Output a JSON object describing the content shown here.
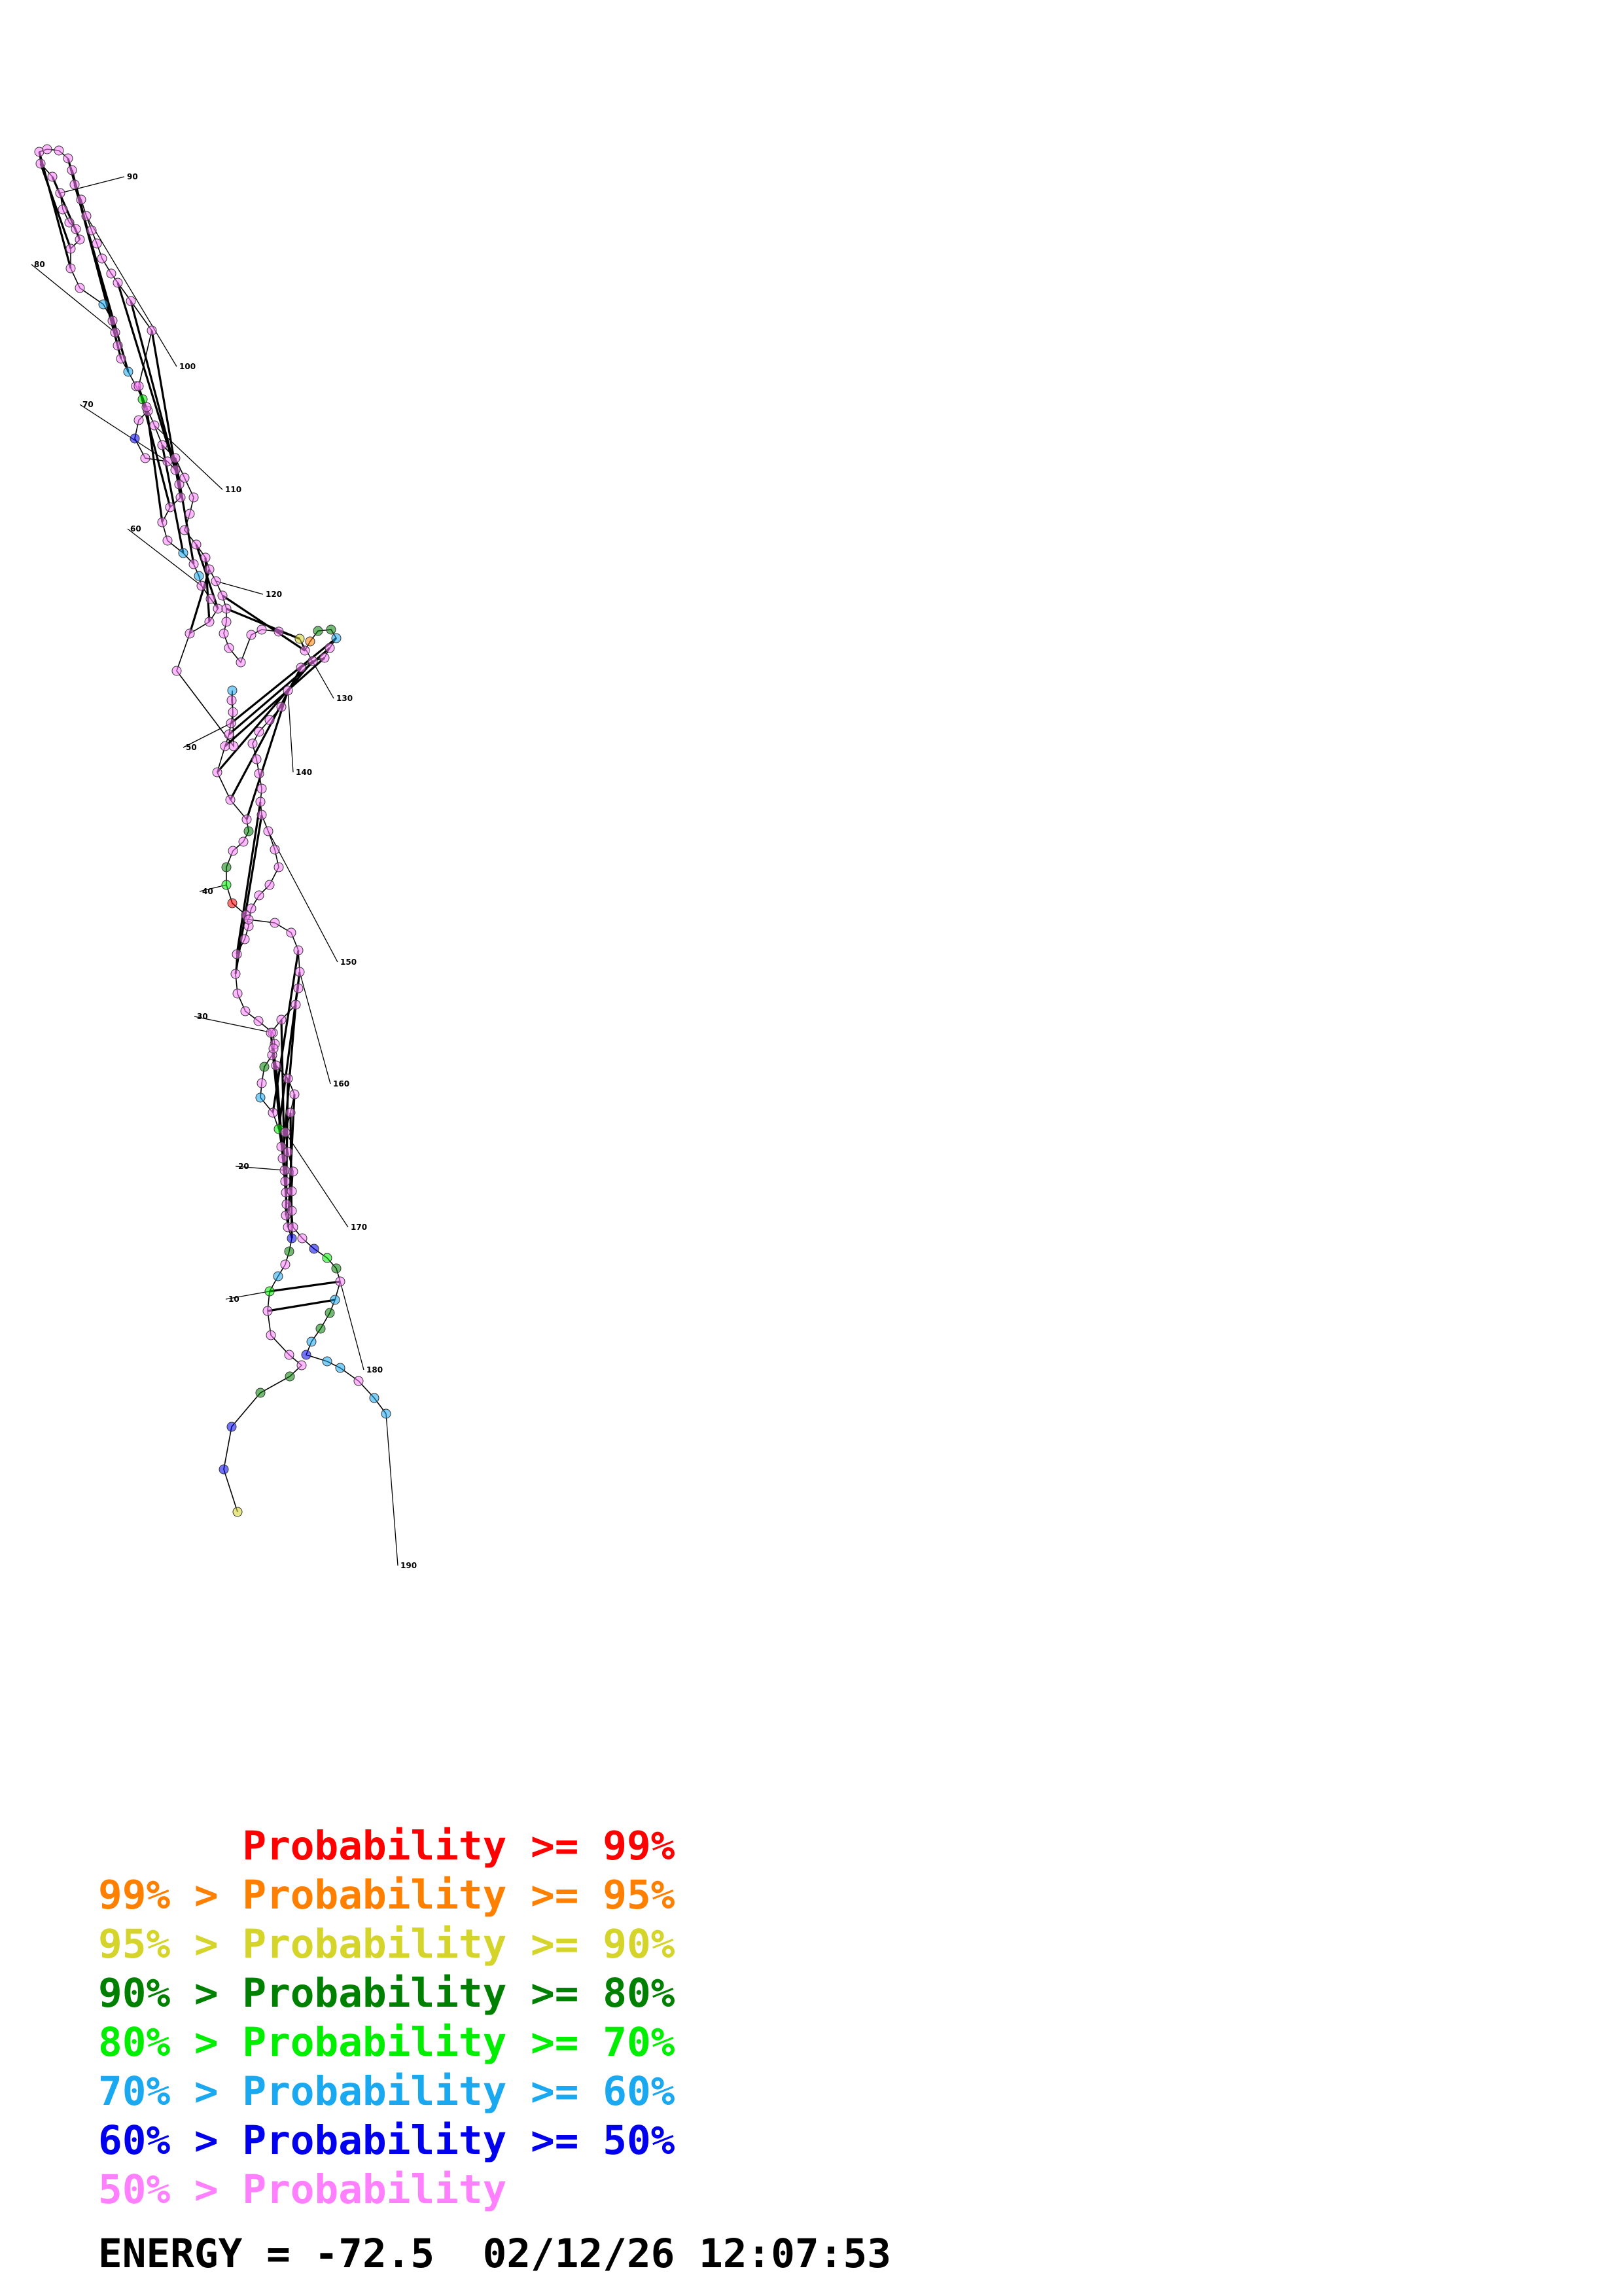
{
  "structure": {
    "nucleotide_count": 190,
    "position_labels": [
      "10",
      "20",
      "30",
      "40",
      "50",
      "60",
      "70",
      "80",
      "90",
      "100",
      "110",
      "120",
      "130",
      "140",
      "150",
      "160",
      "170",
      "180",
      "190"
    ],
    "palette": {
      "p99": "#ff0000",
      "p95": "#ff8000",
      "p90": "#d4d42a",
      "p80": "#008000",
      "p70": "#00ee00",
      "p60": "#1aa8f0",
      "p50": "#0000ee",
      "plow": "#ff80ff"
    }
  },
  "legend": [
    {
      "text": "      Probability >= 99%",
      "color": "#ff0000"
    },
    {
      "text": "99% > Probability >= 95%",
      "color": "#ff8000"
    },
    {
      "text": "95% > Probability >= 90%",
      "color": "#d4d42a"
    },
    {
      "text": "90% > Probability >= 80%",
      "color": "#008000"
    },
    {
      "text": "80% > Probability >= 70%",
      "color": "#00ee00"
    },
    {
      "text": "70% > Probability >= 60%",
      "color": "#1aa8f0"
    },
    {
      "text": "60% > Probability >= 50%",
      "color": "#0000ee"
    },
    {
      "text": "50% > Probability",
      "color": "#ff80ff"
    }
  ],
  "energy_text": "ENERGY = -72.5  02/12/26 12:07:53"
}
